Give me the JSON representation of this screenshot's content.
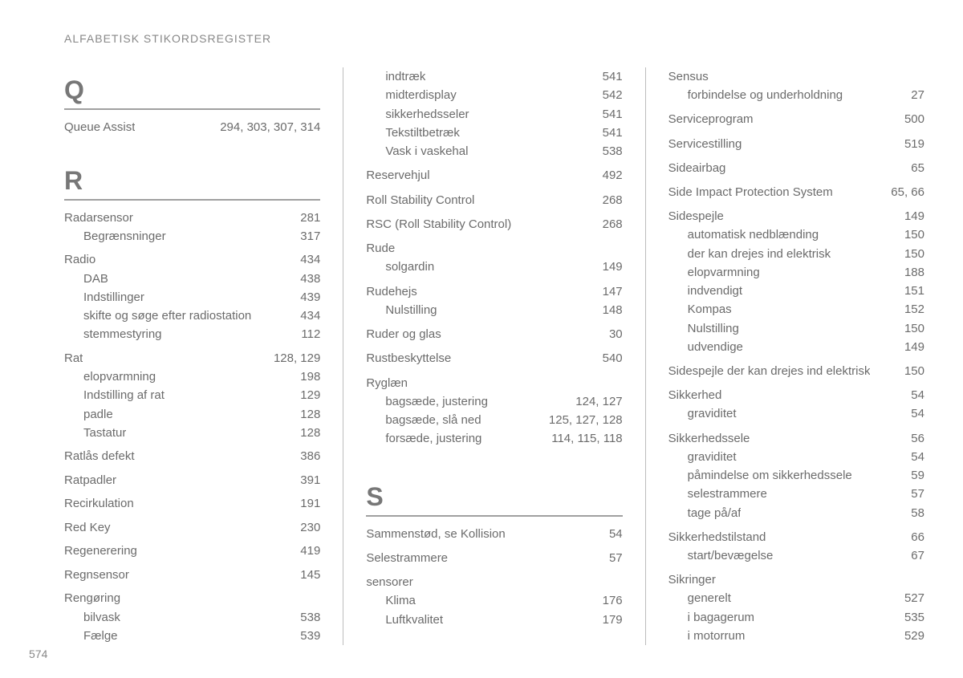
{
  "running_head": "ALFABETISK STIKORDSREGISTER",
  "page_number": "574",
  "columns": [
    {
      "blocks": [
        {
          "letter": "Q",
          "groups": [
            [
              {
                "term": "Queue Assist",
                "pages": "294, 303, 307, 314"
              }
            ]
          ]
        },
        {
          "spacer_pt": 30
        },
        {
          "letter": "R",
          "groups": [
            [
              {
                "term": "Radarsensor",
                "pages": "281"
              },
              {
                "term": "Begrænsninger",
                "pages": "317",
                "sub": true
              }
            ],
            [
              {
                "term": "Radio",
                "pages": "434"
              },
              {
                "term": "DAB",
                "pages": "438",
                "sub": true
              },
              {
                "term": "Indstillinger",
                "pages": "439",
                "sub": true
              },
              {
                "term": "skifte og søge efter radiostation",
                "pages": "434",
                "sub": true
              },
              {
                "term": "stemmestyring",
                "pages": "112",
                "sub": true
              }
            ],
            [
              {
                "term": "Rat",
                "pages": "128, 129"
              },
              {
                "term": "elopvarmning",
                "pages": "198",
                "sub": true
              },
              {
                "term": "Indstilling af rat",
                "pages": "129",
                "sub": true
              },
              {
                "term": "padle",
                "pages": "128",
                "sub": true
              },
              {
                "term": "Tastatur",
                "pages": "128",
                "sub": true
              }
            ],
            [
              {
                "term": "Ratlås defekt",
                "pages": "386"
              }
            ],
            [
              {
                "term": "Ratpadler",
                "pages": "391"
              }
            ],
            [
              {
                "term": "Recirkulation",
                "pages": "191"
              }
            ],
            [
              {
                "term": "Red Key",
                "pages": "230"
              }
            ],
            [
              {
                "term": "Regenerering",
                "pages": "419"
              }
            ],
            [
              {
                "term": "Regnsensor",
                "pages": "145"
              }
            ],
            [
              {
                "term": "Rengøring",
                "pages": ""
              },
              {
                "term": "bilvask",
                "pages": "538",
                "sub": true
              },
              {
                "term": "Fælge",
                "pages": "539",
                "sub": true
              }
            ]
          ]
        }
      ]
    },
    {
      "blocks": [
        {
          "groups": [
            [
              {
                "term": "indtræk",
                "pages": "541",
                "sub": true
              },
              {
                "term": "midterdisplay",
                "pages": "542",
                "sub": true
              },
              {
                "term": "sikkerhedsseler",
                "pages": "541",
                "sub": true
              },
              {
                "term": "Tekstiltbetræk",
                "pages": "541",
                "sub": true
              },
              {
                "term": "Vask i vaskehal",
                "pages": "538",
                "sub": true
              }
            ],
            [
              {
                "term": "Reservehjul",
                "pages": "492"
              }
            ],
            [
              {
                "term": "Roll Stability Control",
                "pages": "268"
              }
            ],
            [
              {
                "term": "RSC (Roll Stability Control)",
                "pages": "268"
              }
            ],
            [
              {
                "term": "Rude",
                "pages": ""
              },
              {
                "term": "solgardin",
                "pages": "149",
                "sub": true
              }
            ],
            [
              {
                "term": "Rudehejs",
                "pages": "147"
              },
              {
                "term": "Nulstilling",
                "pages": "148",
                "sub": true
              }
            ],
            [
              {
                "term": "Ruder og glas",
                "pages": "30"
              }
            ],
            [
              {
                "term": "Rustbeskyttelse",
                "pages": "540"
              }
            ],
            [
              {
                "term": "Ryglæn",
                "pages": ""
              },
              {
                "term": "bagsæde, justering",
                "pages": "124, 127",
                "sub": true
              },
              {
                "term": "bagsæde, slå ned",
                "pages": "125, 127, 128",
                "sub": true
              },
              {
                "term": "forsæde, justering",
                "pages": "114, 115, 118",
                "sub": true
              }
            ]
          ]
        },
        {
          "spacer_pt": 32
        },
        {
          "letter": "S",
          "groups": [
            [
              {
                "term": "Sammenstød, se Kollision",
                "pages": "54"
              }
            ],
            [
              {
                "term": "Selestrammere",
                "pages": "57"
              }
            ],
            [
              {
                "term": "sensorer",
                "pages": ""
              },
              {
                "term": "Klima",
                "pages": "176",
                "sub": true
              },
              {
                "term": "Luftkvalitet",
                "pages": "179",
                "sub": true
              }
            ]
          ]
        }
      ]
    },
    {
      "blocks": [
        {
          "groups": [
            [
              {
                "term": "Sensus",
                "pages": ""
              },
              {
                "term": "forbindelse og underholdning",
                "pages": "27",
                "sub": true
              }
            ],
            [
              {
                "term": "Serviceprogram",
                "pages": "500"
              }
            ],
            [
              {
                "term": "Servicestilling",
                "pages": "519"
              }
            ],
            [
              {
                "term": "Sideairbag",
                "pages": "65"
              }
            ],
            [
              {
                "term": "Side Impact Protection System",
                "pages": "65, 66"
              }
            ],
            [
              {
                "term": "Sidespejle",
                "pages": "149"
              },
              {
                "term": "automatisk nedblænding",
                "pages": "150",
                "sub": true
              },
              {
                "term": "der kan drejes ind elektrisk",
                "pages": "150",
                "sub": true
              },
              {
                "term": "elopvarmning",
                "pages": "188",
                "sub": true
              },
              {
                "term": "indvendigt",
                "pages": "151",
                "sub": true
              },
              {
                "term": "Kompas",
                "pages": "152",
                "sub": true
              },
              {
                "term": "Nulstilling",
                "pages": "150",
                "sub": true
              },
              {
                "term": "udvendige",
                "pages": "149",
                "sub": true
              }
            ],
            [
              {
                "term": "Sidespejle der kan drejes ind elektrisk",
                "pages": "150"
              }
            ],
            [
              {
                "term": "Sikkerhed",
                "pages": "54"
              },
              {
                "term": "graviditet",
                "pages": "54",
                "sub": true
              }
            ],
            [
              {
                "term": "Sikkerhedssele",
                "pages": "56"
              },
              {
                "term": "graviditet",
                "pages": "54",
                "sub": true
              },
              {
                "term": "påmindelse om sikkerhedssele",
                "pages": "59",
                "sub": true
              },
              {
                "term": "selestrammere",
                "pages": "57",
                "sub": true
              },
              {
                "term": "tage på/af",
                "pages": "58",
                "sub": true
              }
            ],
            [
              {
                "term": "Sikkerhedstilstand",
                "pages": "66"
              },
              {
                "term": "start/bevægelse",
                "pages": "67",
                "sub": true
              }
            ],
            [
              {
                "term": "Sikringer",
                "pages": ""
              },
              {
                "term": "generelt",
                "pages": "527",
                "sub": true
              },
              {
                "term": "i bagagerum",
                "pages": "535",
                "sub": true
              },
              {
                "term": "i motorrum",
                "pages": "529",
                "sub": true
              }
            ]
          ]
        }
      ]
    }
  ]
}
